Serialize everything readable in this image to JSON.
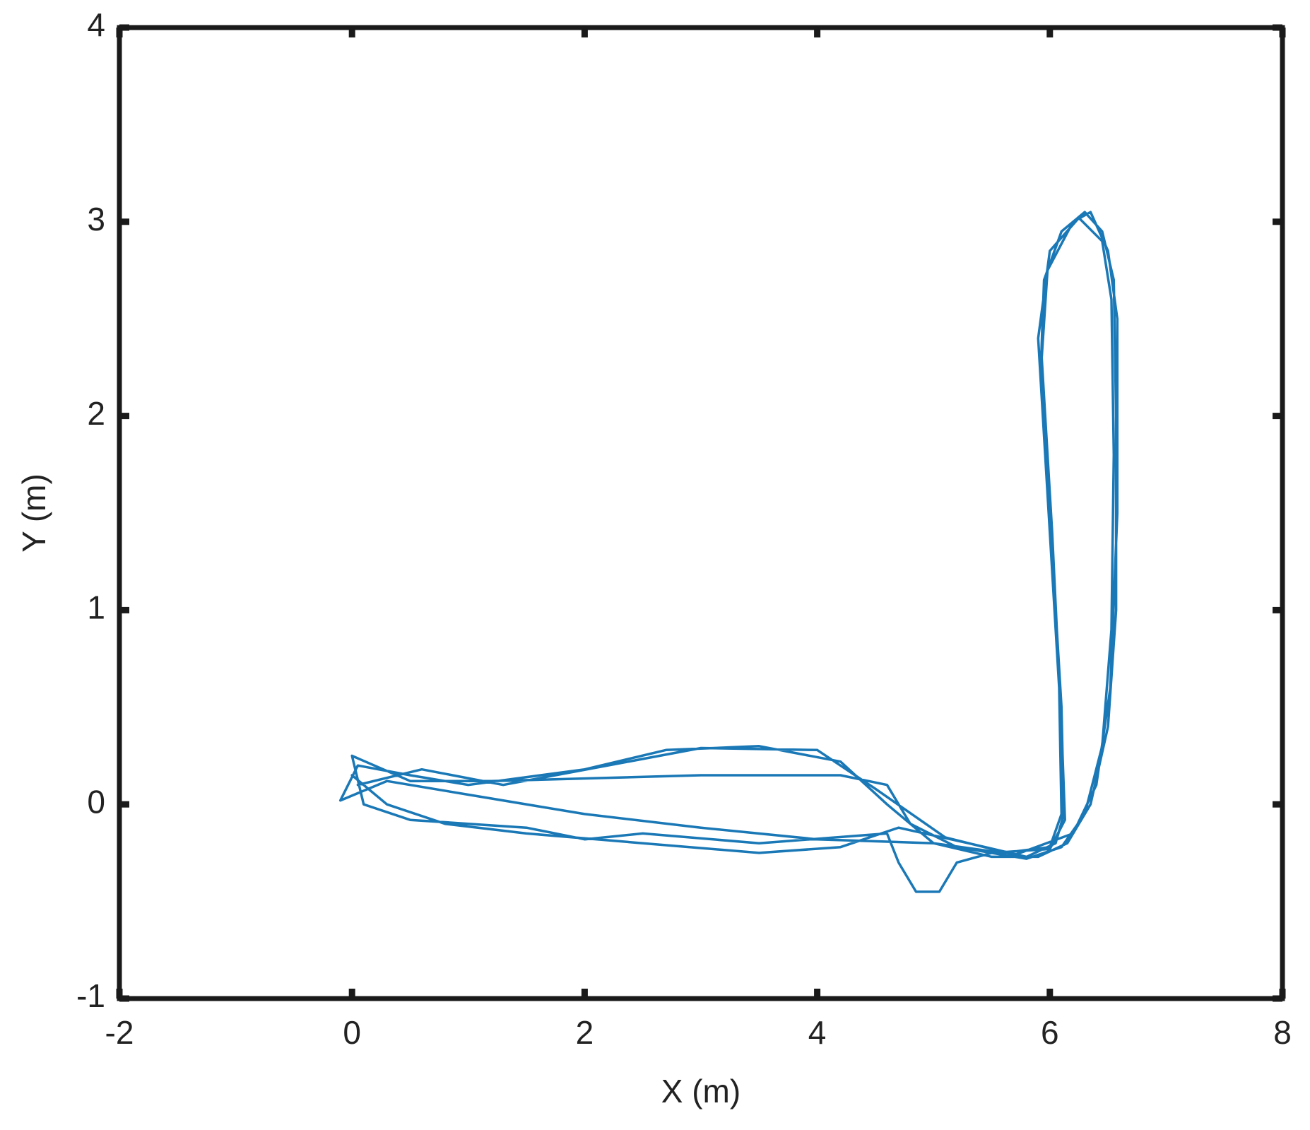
{
  "chart_data": {
    "type": "line",
    "xlabel": "X (m)",
    "ylabel": "Y (m)",
    "xlim": [
      -2,
      8
    ],
    "xticks": [
      -2,
      0,
      2,
      4,
      6,
      8
    ],
    "ylim": [
      -1,
      4
    ],
    "yticks": [
      -1,
      0,
      1,
      2,
      3,
      4
    ],
    "grid": false,
    "color": "#1a78b6",
    "x": [
      0.0,
      0.3,
      0.8,
      1.5,
      2.5,
      3.5,
      4.2,
      4.7,
      5.3,
      5.8,
      6.05,
      6.12,
      6.1,
      6.0,
      5.92,
      5.95,
      6.1,
      6.3,
      6.45,
      6.55,
      6.57,
      6.57,
      6.5,
      6.35,
      6.15,
      5.9,
      5.5,
      5.0,
      4.6,
      4.2,
      3.5,
      2.7,
      2.0,
      1.0,
      0.5,
      0.05,
      -0.1,
      0.3,
      1.0,
      2.0,
      3.0,
      4.0,
      5.0,
      5.6,
      6.0,
      6.1,
      6.08,
      5.98,
      5.9,
      6.0,
      6.25,
      6.45,
      6.53,
      6.55,
      6.53,
      6.45,
      6.3,
      6.1,
      5.8,
      5.2,
      4.8,
      4.6,
      4.2,
      3.0,
      1.2,
      0.5,
      0.0,
      0.1,
      0.5,
      1.5,
      2.0,
      2.5,
      3.5,
      4.6,
      4.7,
      4.85,
      5.05,
      5.2,
      5.5,
      6.0,
      6.13,
      6.1,
      6.02,
      5.93,
      5.98,
      6.2,
      6.35,
      6.5,
      6.58,
      6.58,
      6.52,
      6.4,
      6.2,
      5.7,
      5.1,
      4.5,
      4.0,
      3.0,
      2.2,
      1.3,
      0.6,
      0.05
    ],
    "values": [
      0.15,
      0.0,
      -0.1,
      -0.15,
      -0.2,
      -0.25,
      -0.22,
      -0.12,
      -0.2,
      -0.27,
      -0.2,
      -0.05,
      0.5,
      1.5,
      2.2,
      2.7,
      2.95,
      3.05,
      2.95,
      2.7,
      2.0,
      1.0,
      0.4,
      0.0,
      -0.2,
      -0.27,
      -0.27,
      -0.2,
      0.0,
      0.22,
      0.3,
      0.28,
      0.18,
      0.1,
      0.15,
      0.2,
      0.02,
      0.12,
      0.05,
      -0.05,
      -0.12,
      -0.18,
      -0.2,
      -0.25,
      -0.22,
      -0.05,
      0.6,
      1.6,
      2.4,
      2.85,
      3.02,
      2.9,
      2.6,
      1.8,
      0.9,
      0.3,
      -0.05,
      -0.22,
      -0.28,
      -0.22,
      -0.1,
      0.1,
      0.15,
      0.15,
      0.12,
      0.12,
      0.25,
      0.0,
      -0.08,
      -0.12,
      -0.18,
      -0.15,
      -0.2,
      -0.15,
      -0.3,
      -0.45,
      -0.45,
      -0.3,
      -0.25,
      -0.23,
      -0.08,
      0.4,
      1.4,
      2.3,
      2.75,
      3.0,
      3.05,
      2.85,
      2.5,
      1.5,
      0.6,
      0.1,
      -0.15,
      -0.26,
      -0.17,
      0.08,
      0.28,
      0.29,
      0.2,
      0.1,
      0.18,
      0.1
    ]
  }
}
